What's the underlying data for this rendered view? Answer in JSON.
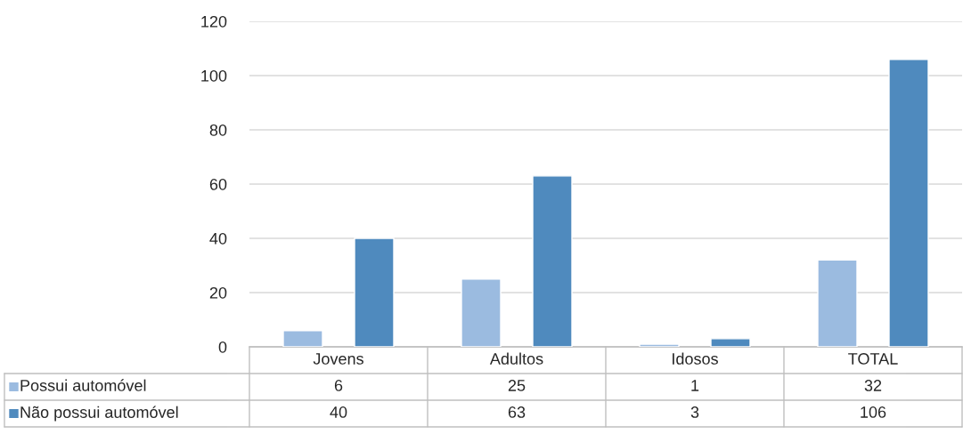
{
  "chart_data": {
    "type": "bar",
    "categories": [
      "Jovens",
      "Adultos",
      "Idosos",
      "TOTAL"
    ],
    "series": [
      {
        "name": "Possui automóvel",
        "color": "#9bbbe0",
        "values": [
          6,
          25,
          1,
          32
        ]
      },
      {
        "name": "Não possui automóvel",
        "color": "#4f8abe",
        "values": [
          40,
          63,
          3,
          106
        ]
      }
    ],
    "ylim": [
      0,
      120
    ],
    "yticks": [
      0,
      20,
      40,
      60,
      80,
      100,
      120
    ],
    "grid": "y",
    "data_labels": true,
    "legend": "bottom left"
  }
}
